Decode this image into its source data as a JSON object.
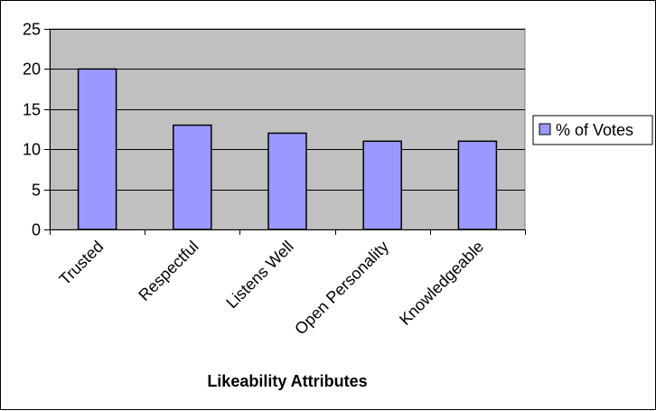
{
  "chart_data": {
    "type": "bar",
    "categories": [
      "Trusted",
      "Respectful",
      "Listens Well",
      "Open Personality",
      "Knowledgeable"
    ],
    "series": [
      {
        "name": "% of Votes",
        "values": [
          20,
          13,
          12,
          11,
          11
        ]
      }
    ],
    "xlabel": "Likeability Attributes",
    "ylabel": "",
    "ylim": [
      0,
      25
    ],
    "yticks": [
      0,
      5,
      10,
      15,
      20,
      25
    ],
    "grid": true,
    "legend": "right",
    "colors": {
      "plot_background": "#c0c0c0",
      "bar_fill": "#9999ff",
      "bar_stroke": "#000000",
      "grid": "#000000"
    }
  }
}
